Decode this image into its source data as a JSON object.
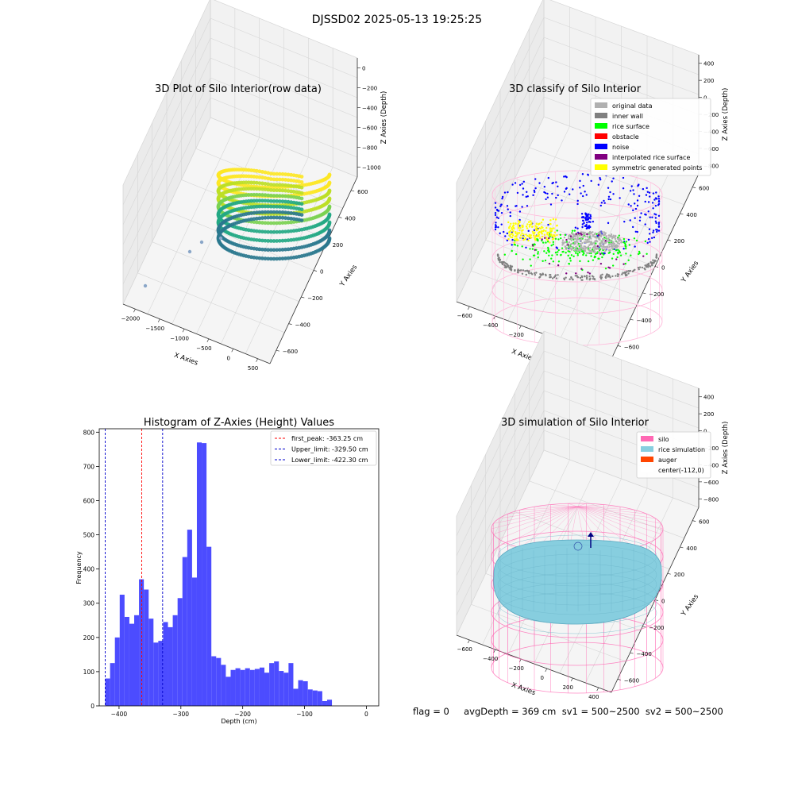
{
  "figure": {
    "suptitle": "DJSSD02 2025-05-13 19:25:25",
    "footer": "flag = 0     avgDepth = 369 cm  sv1 = 500~2500  sv2 = 500~2500"
  },
  "colors": {
    "hist_bar": "#4c4cff",
    "first_peak": "#ff0000",
    "limits": "#0000cc",
    "silo": "#ff69b4",
    "rice_simulation": "#87cedf",
    "auger": "#ff4500",
    "original_data": "#b0b0b0",
    "inner_wall": "#808080",
    "rice_surface": "#00ff00",
    "obstacle": "#ff0000",
    "noise": "#0000ff",
    "interpolated_rice_surface": "#800080",
    "symmetric_generated_points": "#ffff00"
  },
  "chart_data": [
    {
      "type": "scatter",
      "projection": "3d",
      "title": "3D Plot of Silo Interior(row data)",
      "xlabel": "X Axies",
      "ylabel": "Y Axies",
      "zlabel": "Z Axies (Depth)",
      "xticks": [
        "−2000",
        "−1500",
        "−1000",
        "−500",
        "0",
        "500"
      ],
      "yticks": [
        "−600",
        "−400",
        "−200",
        "0",
        "200",
        "400",
        "600"
      ],
      "zticks": [
        "−1000",
        "−800",
        "−600",
        "−400",
        "−200",
        "0"
      ],
      "xlim": [
        -2100,
        550
      ],
      "ylim": [
        -650,
        650
      ],
      "zlim": [
        -1000,
        0
      ],
      "colormap": "viridis",
      "grid": true
    },
    {
      "type": "scatter",
      "projection": "3d",
      "title": "3D classify of Silo Interior",
      "xlabel": "X Axies",
      "ylabel": "Y Axies",
      "zlabel": "Z Axies (Depth)",
      "xticks": [
        "−600",
        "−400",
        "−200",
        "0",
        "200",
        "400"
      ],
      "yticks": [
        "−600",
        "−400",
        "−200",
        "0",
        "200",
        "400",
        "600"
      ],
      "zticks": [
        "−800",
        "−600",
        "−400",
        "−200",
        "0",
        "200",
        "400"
      ],
      "legend": [
        "original data",
        "inner wall",
        "rice surface",
        "obstacle",
        "noise",
        "interpolated rice surface",
        "symmetric generated points"
      ],
      "legend_colors": [
        "#b0b0b0",
        "#808080",
        "#00ff00",
        "#ff0000",
        "#0000ff",
        "#800080",
        "#ffff00"
      ],
      "legend_loc": "upper right",
      "grid": true
    },
    {
      "type": "bar",
      "title": "Histogram of Z-Axies (Height) Values",
      "xlabel": "Depth (cm)",
      "ylabel": "Frequency",
      "xlim": [
        -432,
        20
      ],
      "ylim": [
        0,
        810
      ],
      "xticks": [
        -400,
        -300,
        -200,
        -100,
        0
      ],
      "xtick_labels": [
        "−400",
        "−300",
        "−200",
        "−100",
        "0"
      ],
      "yticks": [
        0,
        100,
        200,
        300,
        400,
        500,
        600,
        700,
        800
      ],
      "bin_start": -422.3,
      "bin_width": 7.8,
      "values": [
        80,
        125,
        200,
        325,
        260,
        240,
        265,
        370,
        340,
        255,
        185,
        190,
        245,
        230,
        265,
        315,
        435,
        515,
        375,
        770,
        768,
        465,
        145,
        140,
        120,
        85,
        105,
        110,
        105,
        110,
        105,
        108,
        112,
        97,
        125,
        130,
        102,
        97,
        125,
        50,
        75,
        72,
        48,
        45,
        43,
        14,
        18
      ],
      "vlines": [
        {
          "x": -363.25,
          "label": "first_peak: -363.25 cm",
          "color": "#ff0000"
        },
        {
          "x": -329.5,
          "label": "Upper_limit: -329.50 cm",
          "color": "#0000cc"
        },
        {
          "x": -422.3,
          "label": "Lower_limit: -422.30 cm",
          "color": "#0000cc"
        }
      ],
      "legend_loc": "upper right",
      "grid": false
    },
    {
      "type": "scatter",
      "projection": "3d",
      "title": "3D simulation of Silo Interior",
      "xlabel": "X Axies",
      "ylabel": "Y Axies",
      "zlabel": "Z Axies (Depth)",
      "xticks": [
        "−600",
        "−400",
        "−200",
        "0",
        "200",
        "400"
      ],
      "yticks": [
        "−600",
        "−400",
        "−200",
        "0",
        "200",
        "400",
        "600"
      ],
      "zticks": [
        "−800",
        "−600",
        "−400",
        "−200",
        "0",
        "200",
        "400"
      ],
      "legend": [
        "silo",
        "rice simulation",
        "auger",
        "center(-112,0)"
      ],
      "legend_colors": [
        "#ff69b4",
        "#87cedf",
        "#ff4500",
        "#ffffff"
      ],
      "legend_loc": "upper right",
      "grid": true
    }
  ]
}
